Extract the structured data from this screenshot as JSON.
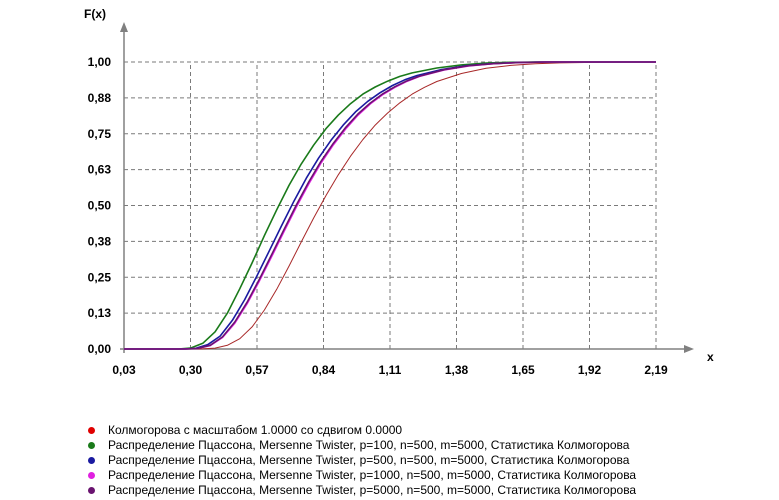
{
  "chart_data": {
    "type": "line",
    "ylabel": "F(x)",
    "xlabel": "x",
    "xlim": [
      0.03,
      2.19
    ],
    "ylim": [
      0.0,
      1.0
    ],
    "x_ticks": [
      "0,03",
      "0,30",
      "0,57",
      "0,84",
      "1,11",
      "1,38",
      "1,65",
      "1,92",
      "2,19"
    ],
    "y_ticks": [
      "0,00",
      "0,13",
      "0,25",
      "0,38",
      "0,50",
      "0,63",
      "0,75",
      "0,88",
      "1,00"
    ],
    "grid": true,
    "legend_position": "bottom",
    "series": [
      {
        "name": "Колмогорова с масштабом 1.0000 со сдвигом 0.0000",
        "color": "#a82828",
        "x": [
          0.28,
          0.35,
          0.4,
          0.45,
          0.5,
          0.55,
          0.6,
          0.65,
          0.7,
          0.75,
          0.8,
          0.85,
          0.9,
          0.95,
          1.0,
          1.05,
          1.1,
          1.15,
          1.2,
          1.25,
          1.3,
          1.4,
          1.5,
          1.6,
          1.7,
          1.8,
          2.0,
          2.19
        ],
        "y": [
          0.0,
          0.0003,
          0.003,
          0.013,
          0.036,
          0.077,
          0.136,
          0.208,
          0.289,
          0.373,
          0.456,
          0.535,
          0.607,
          0.672,
          0.73,
          0.78,
          0.822,
          0.858,
          0.888,
          0.912,
          0.932,
          0.96,
          0.978,
          0.988,
          0.994,
          0.997,
          0.9995,
          1.0
        ]
      },
      {
        "name": "Распределение Пцассона, Mersenne Twister, p=100, n=500, m=5000, Статистика Колмогорова",
        "color": "#1a7a1a",
        "x": [
          0.25,
          0.3,
          0.35,
          0.4,
          0.45,
          0.5,
          0.55,
          0.6,
          0.65,
          0.7,
          0.75,
          0.8,
          0.85,
          0.9,
          0.95,
          1.0,
          1.05,
          1.1,
          1.15,
          1.2,
          1.3,
          1.4,
          1.5,
          1.6,
          1.7
        ],
        "y": [
          0.0,
          0.003,
          0.02,
          0.06,
          0.125,
          0.21,
          0.3,
          0.395,
          0.485,
          0.57,
          0.645,
          0.71,
          0.768,
          0.815,
          0.855,
          0.888,
          0.913,
          0.933,
          0.95,
          0.962,
          0.979,
          0.99,
          0.996,
          0.999,
          1.0
        ]
      },
      {
        "name": "Распределение Пцассона, Mersenne Twister, p=500, n=500, m=5000, Статистика Колмогорова",
        "color": "#1a1aa0",
        "x": [
          0.27,
          0.32,
          0.37,
          0.42,
          0.47,
          0.52,
          0.57,
          0.62,
          0.67,
          0.72,
          0.77,
          0.82,
          0.87,
          0.92,
          0.97,
          1.02,
          1.07,
          1.12,
          1.17,
          1.22,
          1.32,
          1.42,
          1.52,
          1.62,
          1.72
        ],
        "y": [
          0.0,
          0.002,
          0.015,
          0.045,
          0.1,
          0.172,
          0.255,
          0.342,
          0.43,
          0.515,
          0.595,
          0.665,
          0.727,
          0.78,
          0.826,
          0.863,
          0.893,
          0.918,
          0.938,
          0.953,
          0.974,
          0.987,
          0.994,
          0.998,
          1.0
        ]
      },
      {
        "name": "Распределение Пцассона, Mersenne Twister, p=1000, n=500, m=5000, Статистика Колмогорова",
        "color": "#e020e0",
        "x": [
          0.28,
          0.33,
          0.38,
          0.43,
          0.48,
          0.53,
          0.58,
          0.63,
          0.68,
          0.73,
          0.78,
          0.83,
          0.88,
          0.93,
          0.98,
          1.03,
          1.08,
          1.13,
          1.18,
          1.23,
          1.33,
          1.43,
          1.53,
          1.63,
          1.75
        ],
        "y": [
          0.0,
          0.002,
          0.012,
          0.04,
          0.09,
          0.158,
          0.238,
          0.323,
          0.41,
          0.495,
          0.575,
          0.648,
          0.712,
          0.767,
          0.815,
          0.854,
          0.886,
          0.912,
          0.933,
          0.95,
          0.972,
          0.986,
          0.994,
          0.998,
          1.0
        ]
      },
      {
        "name": "Распределение Пцассона, Mersenne Twister, p=5000, n=500, m=5000, Статистика Колмогорова",
        "color": "#6a1470",
        "x": [
          0.28,
          0.33,
          0.38,
          0.43,
          0.48,
          0.53,
          0.58,
          0.63,
          0.68,
          0.73,
          0.78,
          0.83,
          0.88,
          0.93,
          0.98,
          1.03,
          1.08,
          1.13,
          1.18,
          1.23,
          1.33,
          1.43,
          1.53,
          1.63,
          1.75
        ],
        "y": [
          0.0,
          0.002,
          0.013,
          0.042,
          0.094,
          0.163,
          0.244,
          0.33,
          0.417,
          0.502,
          0.582,
          0.654,
          0.717,
          0.772,
          0.819,
          0.857,
          0.889,
          0.914,
          0.935,
          0.951,
          0.973,
          0.987,
          0.994,
          0.998,
          1.0
        ]
      }
    ]
  }
}
